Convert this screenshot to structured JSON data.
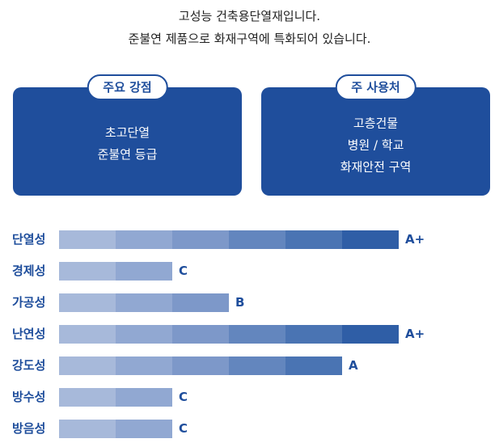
{
  "intro": {
    "line1": "고성능 건축용단열재입니다.",
    "line2": "준불연 제품으로 화재구역에 특화되어 있습니다."
  },
  "cards": [
    {
      "title": "주요 강점",
      "lines": [
        "초고단열",
        "준불연 등급"
      ]
    },
    {
      "title": "주 사용처",
      "lines": [
        "고층건물",
        "병원 / 학교",
        "화재안전 구역"
      ]
    }
  ],
  "grade_scale": [
    "C",
    "B",
    "A",
    "A+"
  ],
  "segment_colors": [
    "#a7b9da",
    "#91a8d2",
    "#7d98c9",
    "#6386be",
    "#4a74b3",
    "#2f5ea6"
  ],
  "ratings": [
    {
      "label": "단열성",
      "grade": "A+",
      "level": 6
    },
    {
      "label": "경제성",
      "grade": "C",
      "level": 2
    },
    {
      "label": "가공성",
      "grade": "B",
      "level": 3
    },
    {
      "label": "난연성",
      "grade": "A+",
      "level": 6
    },
    {
      "label": "강도성",
      "grade": "A",
      "level": 5
    },
    {
      "label": "방수성",
      "grade": "C",
      "level": 2
    },
    {
      "label": "방음성",
      "grade": "C",
      "level": 2
    }
  ]
}
